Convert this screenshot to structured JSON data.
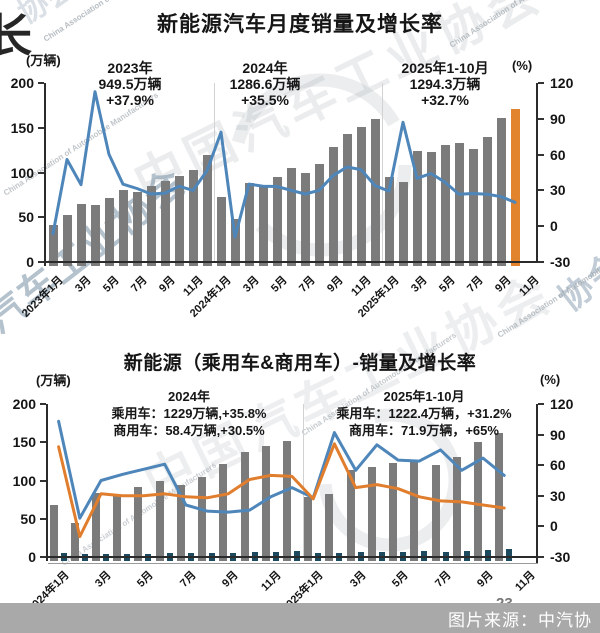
{
  "page": {
    "corner_char": "长"
  },
  "footer": {
    "page_number": "23",
    "source_label": "图片来源：中汽协",
    "band_color": "#a9a9a9"
  },
  "colors": {
    "bar_gray": "#7b7b7b",
    "bar_highlight_orange": "#E2832E",
    "bar_navy": "#1E4A60",
    "line_blue": "#4E86BA",
    "line_orange": "#E07E2E",
    "axis_dark": "#2b2b2b",
    "separator_gray": "#d2d2d2"
  },
  "watermarks": {
    "cn_full": "中国汽车工业协会",
    "cn_left_partial": "汽车工业协会",
    "cn_right_partial": "协会",
    "en_small": "China Association of Automobile Manufacturers"
  },
  "chart_data": [
    {
      "type": "bar",
      "title": "新能源汽车月度销量及增长率",
      "axis_left": {
        "unit": "(万辆)",
        "min": 0,
        "max": 200,
        "ticks": [
          200,
          150,
          100,
          50,
          0
        ]
      },
      "axis_right": {
        "unit": "(%)",
        "min": -30,
        "max": 120,
        "ticks": [
          120,
          90,
          60,
          30,
          0,
          -30
        ]
      },
      "x_tick_labels": [
        "2023年1月",
        "3月",
        "5月",
        "7月",
        "9月",
        "11月",
        "2024年1月",
        "3月",
        "5月",
        "7月",
        "9月",
        "11月",
        "2025年1月",
        "3月",
        "5月",
        "7月",
        "9月",
        "11月"
      ],
      "annotations": [
        {
          "lines": [
            "2023年",
            "949.5万辆",
            "+37.9%"
          ]
        },
        {
          "lines": [
            "2024年",
            "1286.6万辆",
            "+35.5%"
          ]
        },
        {
          "lines": [
            "2025年1-10月",
            "1294.3万辆",
            "+32.7%"
          ]
        }
      ],
      "series": [
        {
          "kind": "bar",
          "name": "月度销量(万辆)",
          "color": "#7b7b7b",
          "highlight_last": true,
          "highlight_color": "#E2832E",
          "values": [
            40.8,
            52.5,
            65.3,
            63.6,
            71.7,
            80.6,
            78.0,
            84.6,
            90.4,
            95.6,
            102.6,
            119.1,
            72.9,
            47.7,
            88.3,
            85.0,
            95.5,
            104.9,
            99.1,
            110.0,
            128.7,
            143.0,
            151.2,
            159.6,
            94.5,
            89.2,
            123.7,
            122.6,
            130.7,
            132.9,
            126.2,
            139.5,
            160.6,
            171.5
          ]
        },
        {
          "kind": "line",
          "name": "同比增长率(%)",
          "color": "#4E86BA",
          "values": [
            -6.3,
            55.9,
            34.8,
            112.7,
            60.2,
            35.2,
            31.6,
            27.0,
            27.7,
            33.5,
            30.0,
            46.4,
            78.8,
            -9.2,
            35.3,
            33.5,
            33.3,
            30.1,
            27.0,
            30.0,
            42.3,
            49.6,
            47.4,
            34.0,
            29.4,
            87.1,
            40.1,
            44.2,
            36.9,
            26.7,
            27.4,
            26.8,
            24.8,
            20.0
          ]
        }
      ]
    },
    {
      "type": "bar",
      "title": "新能源（乘用车&商用车）-销量及增长率",
      "axis_left": {
        "unit": "(万辆)",
        "min": 0,
        "max": 200,
        "ticks": [
          200,
          150,
          100,
          50,
          0
        ]
      },
      "axis_right": {
        "unit": "(%)",
        "min": -30,
        "max": 120,
        "ticks": [
          120,
          90,
          60,
          30,
          0,
          -30
        ]
      },
      "x_tick_labels": [
        "2024年1月",
        "3月",
        "5月",
        "7月",
        "9月",
        "11月",
        "2025年1月",
        "3月",
        "5月",
        "7月",
        "9月",
        "11月"
      ],
      "annotations": [
        {
          "lines": [
            "2024年",
            "乘用车：1229万辆,+35.8%",
            "商用车：58.4万辆,+30.5%"
          ]
        },
        {
          "lines": [
            "2025年1-10月",
            "乘用车：1222.4万辆，+31.2%",
            "商用车：71.9万辆，+65%"
          ]
        }
      ],
      "series": [
        {
          "kind": "bar",
          "name": "乘用车销量(万辆)",
          "color": "#7b7b7b",
          "values": [
            68,
            44,
            84,
            81,
            91,
            100,
            94,
            105,
            122,
            137,
            145,
            152,
            79,
            82,
            114,
            117,
            123,
            126,
            120,
            131,
            150,
            162
          ]
        },
        {
          "kind": "bar",
          "name": "商用车销量(万辆)",
          "color": "#1E4A60",
          "values": [
            4.7,
            3.4,
            4.4,
            4.0,
            4.5,
            4.7,
            4.7,
            4.9,
            5.3,
            6.0,
            6.5,
            7.3,
            4.7,
            5.6,
            6.9,
            6.5,
            7.0,
            7.4,
            6.8,
            7.6,
            8.6,
            10.8
          ]
        },
        {
          "kind": "line",
          "name": "乘用车增长率(%)",
          "color": "#4E86BA",
          "values": [
            103,
            8,
            45,
            51,
            56,
            61,
            21,
            15,
            14,
            16,
            29,
            38,
            28,
            92,
            55,
            80,
            65,
            64,
            75,
            55,
            67,
            50
          ]
        },
        {
          "kind": "line",
          "name": "商用车增长率(%)",
          "color": "#E07E2E",
          "values": [
            78,
            -10,
            32,
            30,
            30,
            32,
            29,
            28,
            32,
            46,
            50,
            49,
            27,
            81,
            38,
            41,
            37,
            29,
            25,
            24,
            21,
            18
          ]
        }
      ]
    }
  ]
}
